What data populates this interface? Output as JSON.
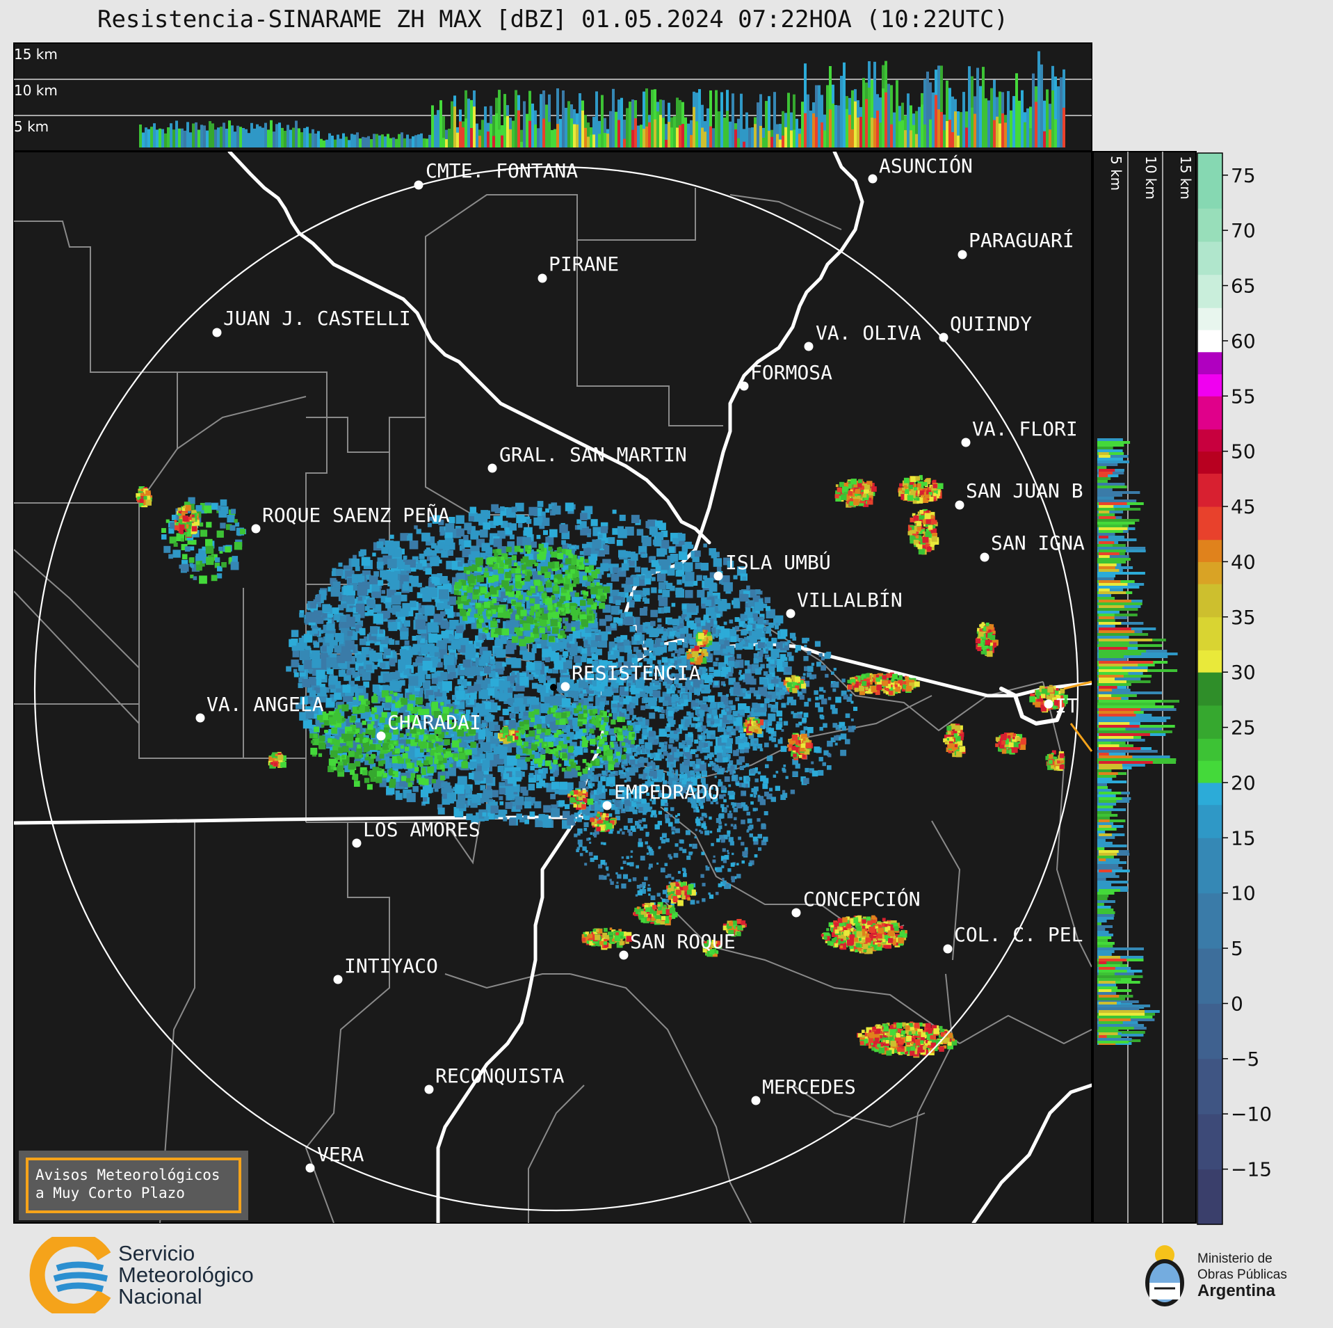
{
  "title": "Resistencia-SINARAME ZH MAX [dBZ] 01.05.2024 07:22HOA (10:22UTC)",
  "top_panel": {
    "height_labels": [
      "15 km",
      "10 km",
      "5 km"
    ]
  },
  "side_panel": {
    "height_labels": [
      "5 km",
      "10 km",
      "15 km"
    ]
  },
  "colorbar": {
    "unit": "dBZ",
    "ticks": [
      "75",
      "70",
      "65",
      "60",
      "55",
      "50",
      "45",
      "40",
      "35",
      "30",
      "25",
      "20",
      "15",
      "10",
      "5",
      "0",
      "−5",
      "−10",
      "−15"
    ],
    "range": [
      -20,
      77
    ]
  },
  "cities": [
    {
      "name": "CMTE. FONTANA"
    },
    {
      "name": "ASUNCIÓN"
    },
    {
      "name": "PARAGUARÍ"
    },
    {
      "name": "PIRANE"
    },
    {
      "name": "JUAN J. CASTELLI"
    },
    {
      "name": "VA. OLIVA"
    },
    {
      "name": "QUIINDY"
    },
    {
      "name": "FORMOSA"
    },
    {
      "name": "VA. FLORI"
    },
    {
      "name": "GRAL. SAN MARTIN"
    },
    {
      "name": "SAN JUAN B"
    },
    {
      "name": "ROQUE SAENZ PEÑA"
    },
    {
      "name": "SAN IGNA"
    },
    {
      "name": "ISLA UMBÚ"
    },
    {
      "name": "VILLALBÍN"
    },
    {
      "name": "RESISTENCIA"
    },
    {
      "name": "VA. ANGELA"
    },
    {
      "name": "CHARADAI"
    },
    {
      "name": "EMPEDRADO"
    },
    {
      "name": "LOS AMORES"
    },
    {
      "name": "CONCEPCIÓN"
    },
    {
      "name": "SAN ROQUE"
    },
    {
      "name": "COL. C. PEL"
    },
    {
      "name": "INTIYACO"
    },
    {
      "name": "RECONQUISTA"
    },
    {
      "name": "MERCEDES"
    },
    {
      "name": "VERA"
    },
    {
      "name": "IT"
    }
  ],
  "avisos": {
    "line1": "Avisos Meteorológicos",
    "line2": "a Muy Corto Plazo"
  },
  "logos": {
    "smn": [
      "Servicio",
      "Meteorológico",
      "Nacional"
    ],
    "ministerio": [
      "Ministerio de",
      "Obras Públicas",
      "Argentina"
    ]
  },
  "colors": {
    "map_bg": "#1a1a1a",
    "page_bg": "#e6e6e6",
    "range_ring": "#ffffff",
    "boundaries": "#888888",
    "rivers": "#ffffff"
  }
}
